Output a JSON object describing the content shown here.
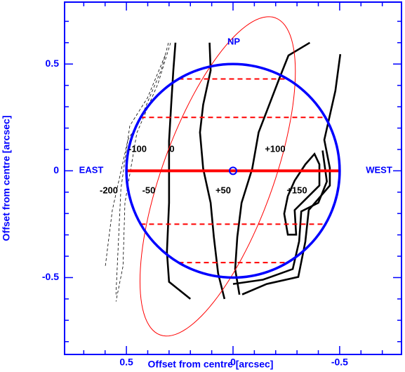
{
  "chart_data": {
    "type": "contour",
    "x_label": "Offset from centre [arcsec]",
    "y_label": "Offset from centre [arcsec]",
    "xlim": [
      0.79,
      -0.79
    ],
    "ylim": [
      -0.86,
      0.79
    ],
    "xticks": [
      0.5,
      0,
      -0.5
    ],
    "yticks": [
      0.5,
      0,
      -0.5
    ],
    "xminorticks": [
      0.7,
      0.6,
      0.4,
      0.3,
      0.2,
      0.1,
      -0.1,
      -0.2,
      -0.3,
      -0.4,
      -0.6,
      -0.7
    ],
    "yminorticks": [
      0.7,
      0.6,
      0.4,
      0.3,
      0.2,
      0.1,
      -0.1,
      -0.2,
      -0.3,
      -0.4,
      -0.6,
      -0.7,
      -0.8
    ],
    "axis_color": "#0000ff",
    "circle": {
      "center": [
        0,
        0
      ],
      "radius": 0.5,
      "color": "#0000ff"
    },
    "ellipse": {
      "center": [
        0.072,
        -0.026
      ],
      "semi_major": 0.79,
      "semi_minor": 0.26,
      "angle": 110,
      "color": "#ff0000"
    },
    "slits": {
      "y": [
        0.43,
        0.25,
        0,
        -0.25,
        -0.43
      ],
      "styles": [
        "dashed",
        "dashed",
        "solid",
        "dashed",
        "dashed"
      ],
      "color": "#ff0000"
    },
    "contours": [
      {
        "style": "solid",
        "x": [
          0.27,
          0.28,
          0.29,
          0.3,
          0.3,
          0.3,
          0.31,
          0.3,
          0.2
        ],
        "y": [
          0.6,
          0.47,
          0.31,
          0.14,
          0.0,
          -0.15,
          -0.38,
          -0.52,
          -0.6
        ]
      },
      {
        "style": "solid",
        "x": [
          0.11,
          0.105,
          0.14,
          0.155,
          0.14,
          0.105,
          0.09,
          0.07,
          0.04
        ],
        "y": [
          0.6,
          0.47,
          0.31,
          0.18,
          0.01,
          -0.15,
          -0.31,
          -0.48,
          -0.6
        ]
      },
      {
        "style": "solid",
        "x": [
          -0.36,
          -0.26,
          -0.22,
          -0.17,
          -0.12,
          -0.09,
          -0.04,
          -0.02,
          -0.01,
          -0.03
        ],
        "y": [
          0.6,
          0.54,
          0.44,
          0.31,
          0.18,
          0.01,
          -0.15,
          -0.31,
          -0.46,
          -0.58
        ]
      },
      {
        "style": "solid",
        "x": [
          -0.503,
          -0.48,
          -0.428,
          -0.454,
          -0.454,
          -0.355,
          -0.339,
          -0.306,
          -0.158,
          -0.043
        ],
        "y": [
          0.546,
          0.375,
          0.145,
          0.013,
          -0.069,
          -0.184,
          -0.332,
          -0.497,
          -0.53,
          -0.579
        ]
      },
      {
        "style": "solid",
        "x": [
          -0.42,
          -0.44,
          -0.4,
          -0.32,
          -0.31,
          -0.28,
          -0.14,
          0.0
        ],
        "y": [
          0.095,
          -0.05,
          -0.15,
          -0.19,
          -0.33,
          -0.46,
          -0.51,
          -0.53
        ]
      },
      {
        "style": "solid",
        "x": [
          -0.257,
          -0.289,
          -0.339,
          -0.382,
          -0.405,
          -0.405,
          -0.289,
          -0.296,
          -0.257,
          -0.24,
          -0.257
        ],
        "y": [
          -0.118,
          -0.046,
          0.03,
          0.079,
          0.03,
          -0.069,
          -0.184,
          -0.299,
          -0.299,
          -0.201,
          -0.118
        ]
      },
      {
        "style": "dashed",
        "x": [
          0.303,
          0.336,
          0.434,
          0.493,
          0.566,
          0.599
        ],
        "y": [
          0.599,
          0.474,
          0.243,
          0.145,
          -0.184,
          -0.447
        ]
      },
      {
        "style": "dashed",
        "x": [
          0.319,
          0.401,
          0.484,
          0.526,
          0.549
        ],
        "y": [
          0.539,
          0.342,
          0.211,
          -0.086,
          -0.579
        ]
      },
      {
        "style": "dashed",
        "x": [
          0.293,
          0.352,
          0.451,
          0.507,
          0.516,
          0.549
        ],
        "y": [
          0.599,
          0.408,
          0.178,
          -0.151,
          -0.447,
          -0.612
        ]
      }
    ],
    "annotations": [
      "EAST",
      "WEST",
      "NP",
      "-100",
      "0",
      "+100",
      "-200",
      "-50",
      "+50",
      "+150"
    ]
  }
}
